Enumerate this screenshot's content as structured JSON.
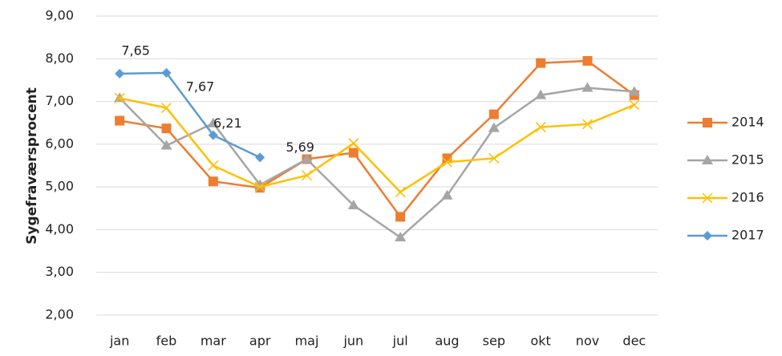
{
  "chart_data": {
    "type": "line",
    "y_label": "Sygefraværsprocent",
    "categories": [
      "jan",
      "feb",
      "mar",
      "apr",
      "maj",
      "jun",
      "jul",
      "aug",
      "sep",
      "okt",
      "nov",
      "dec"
    ],
    "series": [
      {
        "name": "2014",
        "color": "#ed7d31",
        "values": [
          6.55,
          6.37,
          5.13,
          4.98,
          5.65,
          5.8,
          4.3,
          5.67,
          6.7,
          7.9,
          7.95,
          7.15
        ]
      },
      {
        "name": "2015",
        "color": "#a5a5a5",
        "values": [
          7.08,
          5.97,
          6.49,
          5.05,
          5.65,
          4.57,
          3.82,
          4.8,
          6.38,
          7.15,
          7.32,
          7.23
        ]
      },
      {
        "name": "2016",
        "color": "#ffc000",
        "values": [
          7.08,
          6.85,
          5.5,
          5.0,
          5.27,
          6.02,
          4.88,
          5.58,
          5.67,
          6.4,
          6.47,
          6.92
        ]
      },
      {
        "name": "2017",
        "color": "#5b9bd5",
        "values": [
          7.65,
          7.67,
          6.21,
          5.69,
          null,
          null,
          null,
          null,
          null,
          null,
          null,
          null
        ],
        "value_labels": [
          "7,65",
          "7,67",
          "6,21",
          "5,69",
          null,
          null,
          null,
          null,
          null,
          null,
          null,
          null
        ]
      }
    ],
    "ylim": [
      2,
      9
    ],
    "yticks": [
      {
        "value": 2,
        "label": "2,00"
      },
      {
        "value": 3,
        "label": "3,00"
      },
      {
        "value": 4,
        "label": "4,00"
      },
      {
        "value": 5,
        "label": "5,00"
      },
      {
        "value": 6,
        "label": "6,00"
      },
      {
        "value": 7,
        "label": "7,00"
      },
      {
        "value": 8,
        "label": "8,00"
      },
      {
        "value": 9,
        "label": "9,00"
      }
    ],
    "grid": true,
    "legend": "right"
  }
}
